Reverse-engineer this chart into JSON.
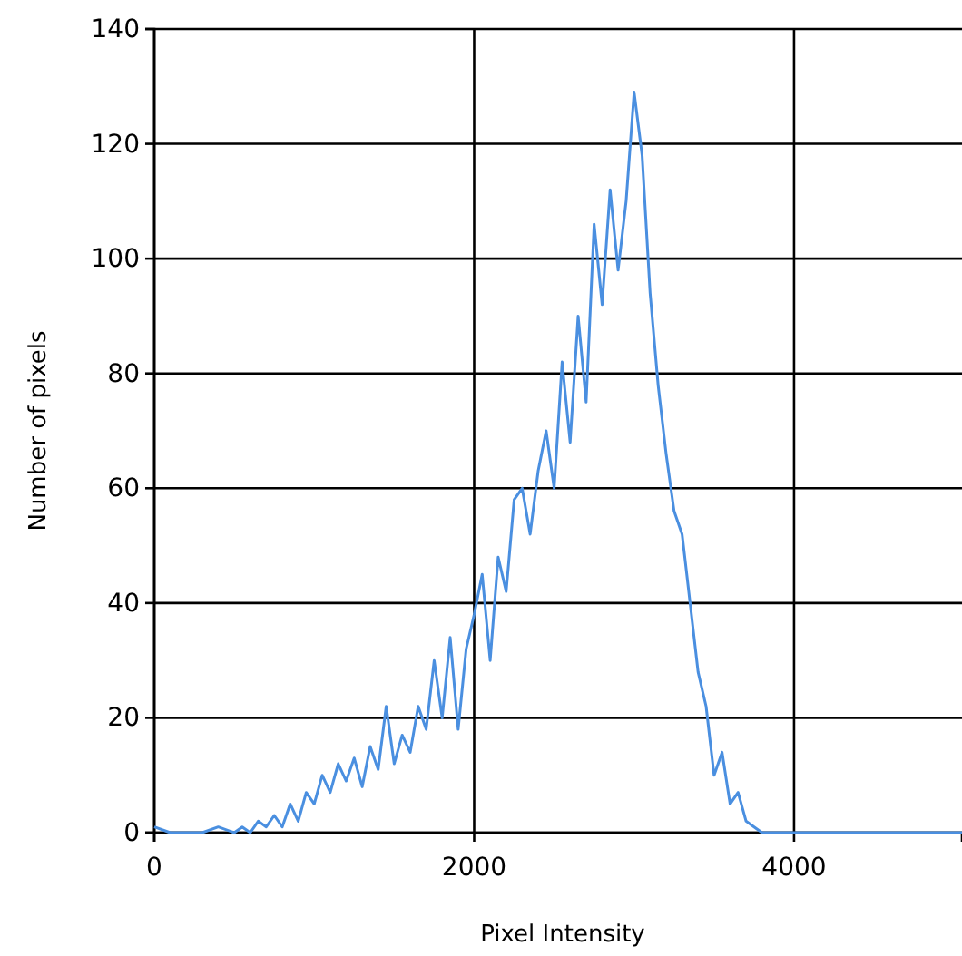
{
  "chart_data": {
    "type": "line",
    "xlabel": "Pixel Intensity",
    "ylabel": "Number of pixels",
    "x": [
      0,
      100,
      200,
      300,
      400,
      500,
      550,
      600,
      650,
      700,
      750,
      800,
      850,
      900,
      950,
      1000,
      1050,
      1100,
      1150,
      1200,
      1250,
      1300,
      1350,
      1400,
      1450,
      1500,
      1550,
      1600,
      1650,
      1700,
      1750,
      1800,
      1850,
      1900,
      1950,
      2000,
      2050,
      2100,
      2150,
      2200,
      2250,
      2300,
      2350,
      2400,
      2450,
      2500,
      2550,
      2600,
      2650,
      2700,
      2750,
      2800,
      2850,
      2900,
      2950,
      3000,
      3050,
      3100,
      3150,
      3200,
      3250,
      3300,
      3350,
      3400,
      3450,
      3500,
      3550,
      3600,
      3650,
      3700,
      3750,
      3800,
      3900,
      4000,
      5050
    ],
    "series": [
      {
        "color": "#4a8fe0",
        "values": [
          1,
          0,
          0,
          0,
          1,
          0,
          1,
          0,
          2,
          1,
          3,
          1,
          5,
          2,
          7,
          5,
          10,
          7,
          12,
          9,
          13,
          8,
          15,
          11,
          22,
          12,
          17,
          14,
          22,
          18,
          30,
          20,
          34,
          18,
          32,
          38,
          45,
          30,
          48,
          42,
          58,
          60,
          52,
          63,
          70,
          60,
          82,
          68,
          90,
          75,
          106,
          92,
          112,
          98,
          110,
          129,
          118,
          94,
          78,
          66,
          56,
          52,
          40,
          28,
          22,
          10,
          14,
          5,
          7,
          2,
          1,
          0,
          0,
          0,
          0
        ]
      }
    ],
    "xlim": [
      0,
      5050
    ],
    "ylim": [
      0,
      140
    ],
    "xticks": [
      0,
      2000,
      4000
    ],
    "yticks": [
      0,
      20,
      40,
      60,
      80,
      100,
      120,
      140
    ],
    "grid": true
  }
}
